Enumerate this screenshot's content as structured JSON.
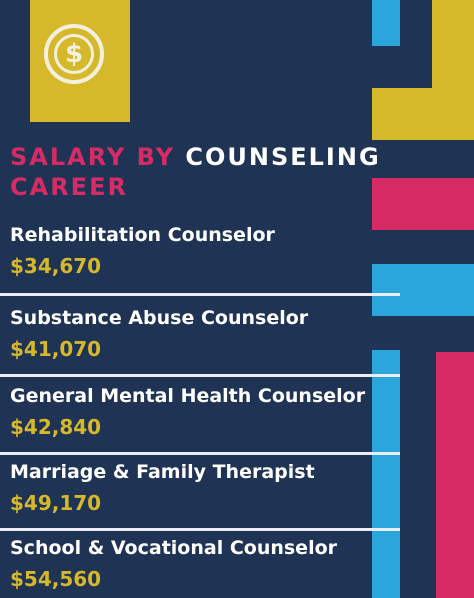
{
  "title": {
    "part1": "SALARY BY",
    "part2": "COUNSELING",
    "part3": "CAREER"
  },
  "icon": "dollar-coin-icon",
  "colors": {
    "background": "#1f3354",
    "gold": "#d6b82b",
    "magenta": "#d72b66",
    "blue": "#2aa6dc"
  },
  "careers": [
    {
      "name": "Rehabilitation Counselor",
      "salary": "$34,670"
    },
    {
      "name": "Substance Abuse Counselor",
      "salary": "$41,070"
    },
    {
      "name": "General Mental Health Counselor",
      "salary": "$42,840"
    },
    {
      "name": "Marriage & Family Therapist",
      "salary": "$49,170"
    },
    {
      "name": "School & Vocational Counselor",
      "salary": "$54,560"
    }
  ]
}
